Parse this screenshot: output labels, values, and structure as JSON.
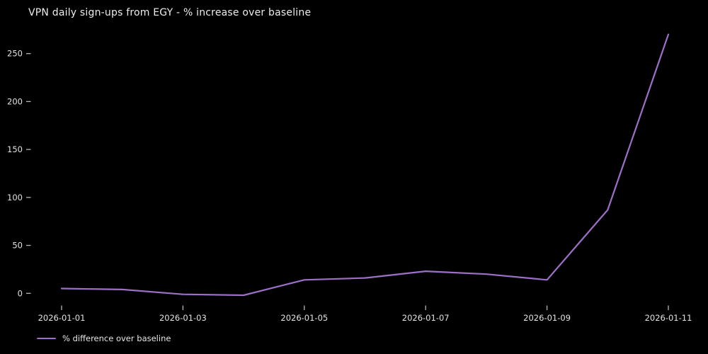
{
  "title": "VPN daily sign-ups from EGY - % increase over baseline",
  "legend": {
    "label": "% difference over baseline"
  },
  "colors": {
    "background": "#000000",
    "line": "#9d70c7",
    "text": "#e4e4e4",
    "tick": "#b5b5b5"
  },
  "chart_data": {
    "type": "line",
    "title": "VPN daily sign-ups from EGY - % increase over baseline",
    "x": [
      "2026-01-01",
      "2026-01-02",
      "2026-01-03",
      "2026-01-04",
      "2026-01-05",
      "2026-01-06",
      "2026-01-07",
      "2026-01-08",
      "2026-01-09",
      "2026-01-10",
      "2026-01-11"
    ],
    "series": [
      {
        "name": "% difference over baseline",
        "values": [
          5,
          4,
          -1,
          -2,
          14,
          16,
          23,
          20,
          14,
          87,
          270
        ]
      }
    ],
    "x_tick_labels": [
      "2026-01-01",
      "2026-01-03",
      "2026-01-05",
      "2026-01-07",
      "2026-01-09",
      "2026-01-11"
    ],
    "y_ticks": [
      0,
      50,
      100,
      150,
      200,
      250
    ],
    "ylim": [
      -20,
      275
    ],
    "xlabel": "",
    "ylabel": "",
    "grid": false,
    "legend_position": "bottom-left"
  }
}
